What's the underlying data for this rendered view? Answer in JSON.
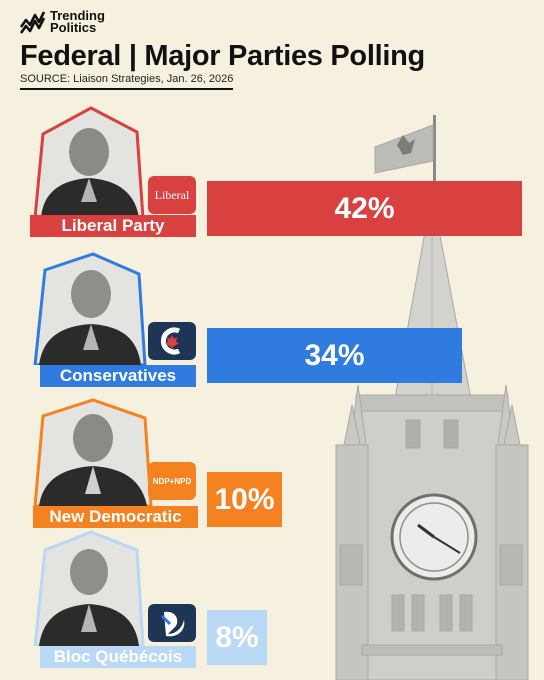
{
  "brand": {
    "line1": "Trending",
    "line2": "Politics"
  },
  "header": {
    "title": "Federal | Major Parties Polling",
    "source": "SOURCE: Liaison Strategies, Jan. 26, 2026"
  },
  "chart_data": {
    "type": "bar",
    "orientation": "horizontal",
    "title": "Federal | Major Parties Polling",
    "categories": [
      "Liberal Party",
      "Conservatives",
      "New Democratic",
      "Bloc Québécois"
    ],
    "values": [
      42,
      34,
      10,
      8
    ],
    "value_labels": [
      "42%",
      "34%",
      "10%",
      "8%"
    ],
    "unit": "%",
    "colors": [
      "#d94141",
      "#2f7be0",
      "#f58220",
      "#b9d8f5"
    ],
    "logos": [
      "Liberal",
      "",
      "NDP+NPD",
      ""
    ],
    "grid": false,
    "legend": "none"
  }
}
